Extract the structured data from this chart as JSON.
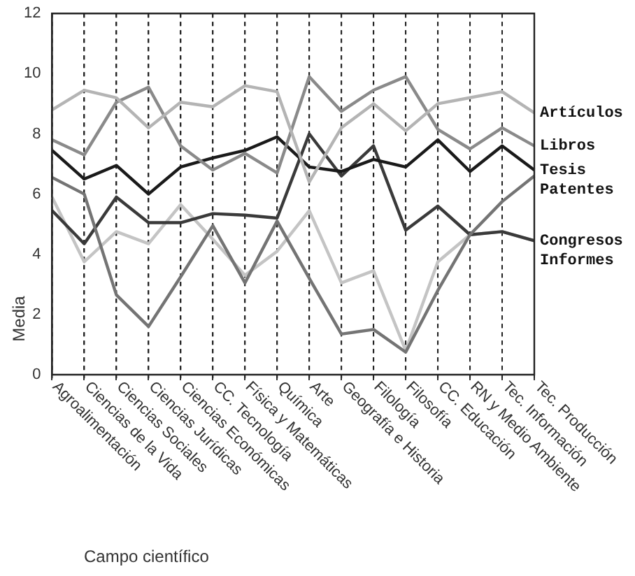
{
  "chart_data": {
    "type": "line",
    "xlabel": "Campo científico",
    "ylabel": "Media",
    "categories": [
      "Agroalimentación",
      "Ciencias de la Vida",
      "Ciencias Sociales",
      "Ciencias Jurídicas",
      "Ciencias Económicas",
      "CC. Tecnología",
      "Física y Matemáticas",
      "Química",
      "Arte",
      "Geografía e Historia",
      "Filología",
      "Filosofía",
      "CC. Educación",
      "RN y Medio Ambiente",
      "Tec. Información",
      "Tec. Producción"
    ],
    "series": [
      {
        "name": "Artículos",
        "color": "#b4b4b4",
        "values": [
          8.8,
          9.45,
          9.2,
          8.2,
          9.05,
          8.9,
          9.6,
          9.4,
          6.4,
          8.2,
          9.0,
          8.1,
          9.0,
          9.2,
          9.4,
          8.7
        ]
      },
      {
        "name": "Libros",
        "color": "#8a8a8a",
        "values": [
          7.8,
          7.3,
          9.05,
          9.55,
          7.6,
          6.8,
          7.35,
          6.7,
          9.9,
          8.75,
          9.45,
          9.9,
          8.15,
          7.5,
          8.2,
          7.6
        ]
      },
      {
        "name": "Tesis",
        "color": "#1a1a1a",
        "values": [
          7.45,
          6.5,
          6.95,
          6.0,
          6.9,
          7.2,
          7.45,
          7.9,
          6.9,
          6.75,
          7.15,
          6.9,
          7.8,
          6.75,
          7.6,
          6.8
        ]
      },
      {
        "name": "Patentes",
        "color": "#747474",
        "values": [
          6.55,
          6.0,
          2.65,
          1.6,
          3.25,
          4.95,
          3.05,
          5.1,
          3.2,
          1.35,
          1.5,
          0.75,
          2.8,
          4.65,
          5.75,
          6.6
        ]
      },
      {
        "name": "Congresos",
        "color": "#3a3a3a",
        "values": [
          5.45,
          4.35,
          5.9,
          5.05,
          5.05,
          5.35,
          5.3,
          5.2,
          8.0,
          6.6,
          7.6,
          4.8,
          5.6,
          4.65,
          4.75,
          4.45
        ]
      },
      {
        "name": "Informes",
        "color": "#c4c4c4",
        "values": [
          5.9,
          3.75,
          4.75,
          4.35,
          5.65,
          4.5,
          3.3,
          4.1,
          5.45,
          3.05,
          3.45,
          0.8,
          3.75,
          4.65,
          4.75,
          4.45
        ]
      }
    ],
    "ylim": [
      0,
      12
    ],
    "yticks": [
      0,
      2,
      4,
      6,
      8,
      10,
      12
    ],
    "grid": "x",
    "legend": false,
    "marker": "none",
    "line_style": "solid"
  }
}
